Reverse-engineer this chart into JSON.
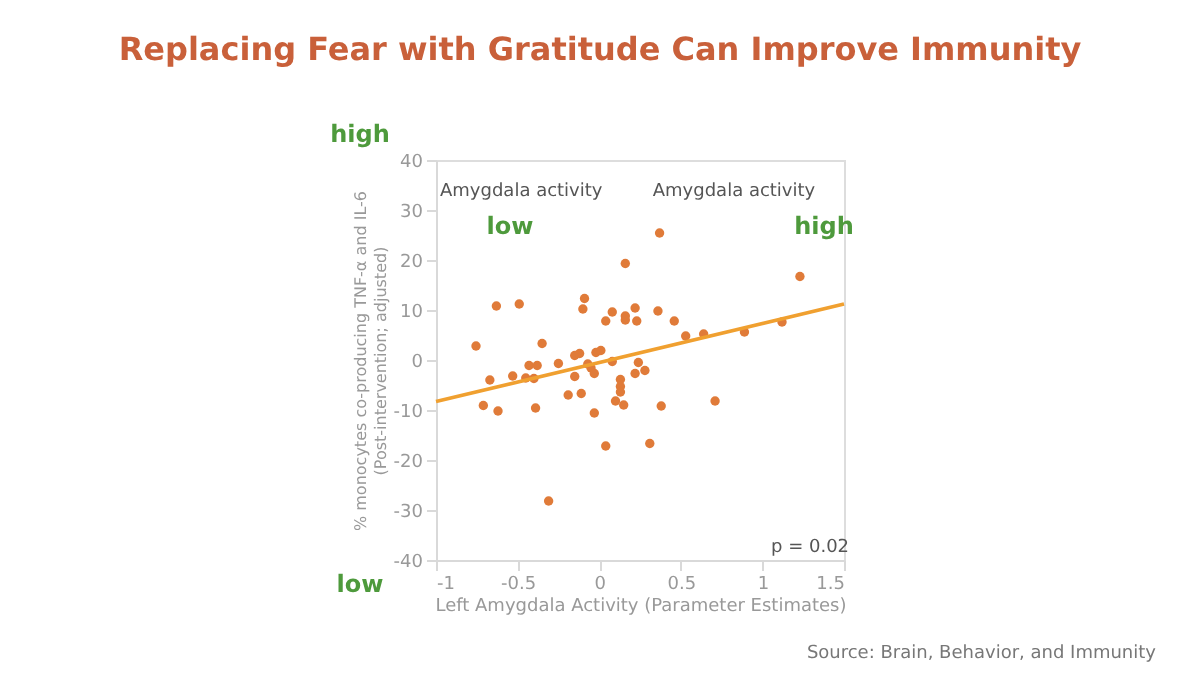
{
  "chart_data": {
    "type": "scatter",
    "title": "Replacing Fear with Gratitude Can Improve Immunity",
    "xlabel": "Left Amygdala Activity (Parameter Estimates)",
    "ylabel": [
      "% monocytes co-producing TNF-α and IL-6",
      "(Post-intervention; adjusted)"
    ],
    "xlim": [
      -1,
      1.5
    ],
    "xticks": [
      -1,
      -0.5,
      0,
      0.5,
      1,
      1.5
    ],
    "ylim": [
      -40,
      40
    ],
    "yticks": [
      -40,
      -30,
      -20,
      -10,
      0,
      10,
      20,
      30,
      40
    ],
    "grid": false,
    "annotations": [
      "Amygdala activity",
      "low",
      "Amygdala activity",
      "high",
      "high",
      "low",
      "p = 0.02",
      "Source: Brain, Behavior, and Immunity"
    ],
    "series": [
      {
        "marker": "circle",
        "color": "#e07b39",
        "x": [
          -0.755,
          -0.67,
          -0.71,
          -0.62,
          -0.63,
          -0.49,
          -0.53,
          -0.45,
          -0.43,
          -0.38,
          -0.4,
          -0.35,
          -0.39,
          -0.25,
          -0.19,
          -0.15,
          -0.12,
          -0.15,
          -0.11,
          -0.09,
          -0.1,
          -0.07,
          -0.05,
          -0.03,
          -0.02,
          0.01,
          -0.03,
          0.04,
          0.04,
          0.08,
          0.08,
          0.16,
          0.16,
          0.16,
          0.22,
          0.23,
          0.24,
          0.22,
          0.13,
          0.13,
          0.13,
          0.1,
          0.15,
          0.28,
          0.31,
          0.37,
          0.36,
          0.38,
          0.46,
          0.53,
          0.64,
          0.71,
          0.89,
          1.12,
          1.23,
          -0.31
        ],
        "values": [
          2.8,
          -4.0,
          -9.1,
          -10.2,
          10.8,
          11.2,
          -3.2,
          -3.6,
          -1.1,
          -1.1,
          -3.7,
          3.3,
          -9.6,
          -0.7,
          -7.0,
          0.9,
          1.3,
          -3.3,
          -6.7,
          12.3,
          10.2,
          -0.8,
          -1.6,
          -2.7,
          1.5,
          1.9,
          -10.6,
          -17.2,
          7.8,
          9.6,
          -0.3,
          19.3,
          8.8,
          8.0,
          10.4,
          7.8,
          -0.5,
          -2.7,
          -3.9,
          -5.3,
          -6.4,
          -8.2,
          -9.0,
          -2.1,
          -16.7,
          25.4,
          9.8,
          -9.2,
          7.8,
          4.8,
          5.2,
          -8.2,
          5.6,
          7.6,
          16.7,
          -28.2
        ]
      },
      {
        "type": "line",
        "color": "#f0a030",
        "line_style": "solid",
        "x": [
          -1,
          1.5
        ],
        "values": [
          -8.3,
          11.2
        ]
      }
    ]
  }
}
